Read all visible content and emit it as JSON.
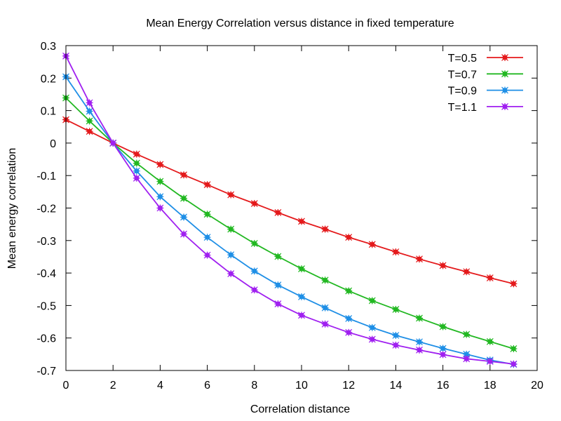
{
  "chart_data": {
    "type": "line",
    "title": "Mean Energy Correlation versus distance in fixed temperature",
    "xlabel": "Correlation distance",
    "ylabel": "Mean energy correlation",
    "xlim": [
      0,
      20
    ],
    "ylim": [
      -0.7,
      0.3
    ],
    "xticks": [
      0,
      2,
      4,
      6,
      8,
      10,
      12,
      14,
      16,
      18,
      20
    ],
    "yticks": [
      -0.7,
      -0.6,
      -0.5,
      -0.4,
      -0.3,
      -0.2,
      -0.1,
      0,
      0.1,
      0.2,
      0.3
    ],
    "xtick_labels": [
      "0",
      "2",
      "4",
      "6",
      "8",
      "10",
      "12",
      "14",
      "16",
      "18",
      "20"
    ],
    "ytick_labels": [
      "-0.7",
      "-0.6",
      "-0.5",
      "-0.4",
      "-0.3",
      "-0.2",
      "-0.1",
      "0",
      "0.1",
      "0.2",
      "0.3"
    ],
    "grid": false,
    "legend_position": "top-right",
    "x": [
      0,
      1,
      2,
      3,
      4,
      5,
      6,
      7,
      8,
      9,
      10,
      11,
      12,
      13,
      14,
      15,
      16,
      17,
      18,
      19
    ],
    "series": [
      {
        "name": "T=0.5",
        "color": "#e41a1c",
        "values": [
          0.072,
          0.036,
          0.0,
          -0.034,
          -0.066,
          -0.098,
          -0.128,
          -0.159,
          -0.186,
          -0.214,
          -0.241,
          -0.265,
          -0.29,
          -0.312,
          -0.335,
          -0.357,
          -0.377,
          -0.396,
          -0.415,
          -0.433
        ]
      },
      {
        "name": "T=0.7",
        "color": "#22b822",
        "values": [
          0.139,
          0.068,
          0.0,
          -0.062,
          -0.118,
          -0.17,
          -0.219,
          -0.265,
          -0.309,
          -0.349,
          -0.387,
          -0.422,
          -0.455,
          -0.485,
          -0.512,
          -0.539,
          -0.565,
          -0.589,
          -0.611,
          -0.633
        ]
      },
      {
        "name": "T=0.9",
        "color": "#1f8fe6",
        "values": [
          0.204,
          0.098,
          0.0,
          -0.086,
          -0.165,
          -0.228,
          -0.29,
          -0.344,
          -0.394,
          -0.437,
          -0.473,
          -0.507,
          -0.54,
          -0.568,
          -0.592,
          -0.612,
          -0.632,
          -0.65,
          -0.668,
          -0.681
        ]
      },
      {
        "name": "T=1.1",
        "color": "#a020f0",
        "values": [
          0.268,
          0.124,
          0.0,
          -0.108,
          -0.2,
          -0.28,
          -0.345,
          -0.402,
          -0.452,
          -0.495,
          -0.53,
          -0.557,
          -0.583,
          -0.604,
          -0.622,
          -0.637,
          -0.651,
          -0.664,
          -0.672,
          -0.68
        ]
      }
    ]
  }
}
